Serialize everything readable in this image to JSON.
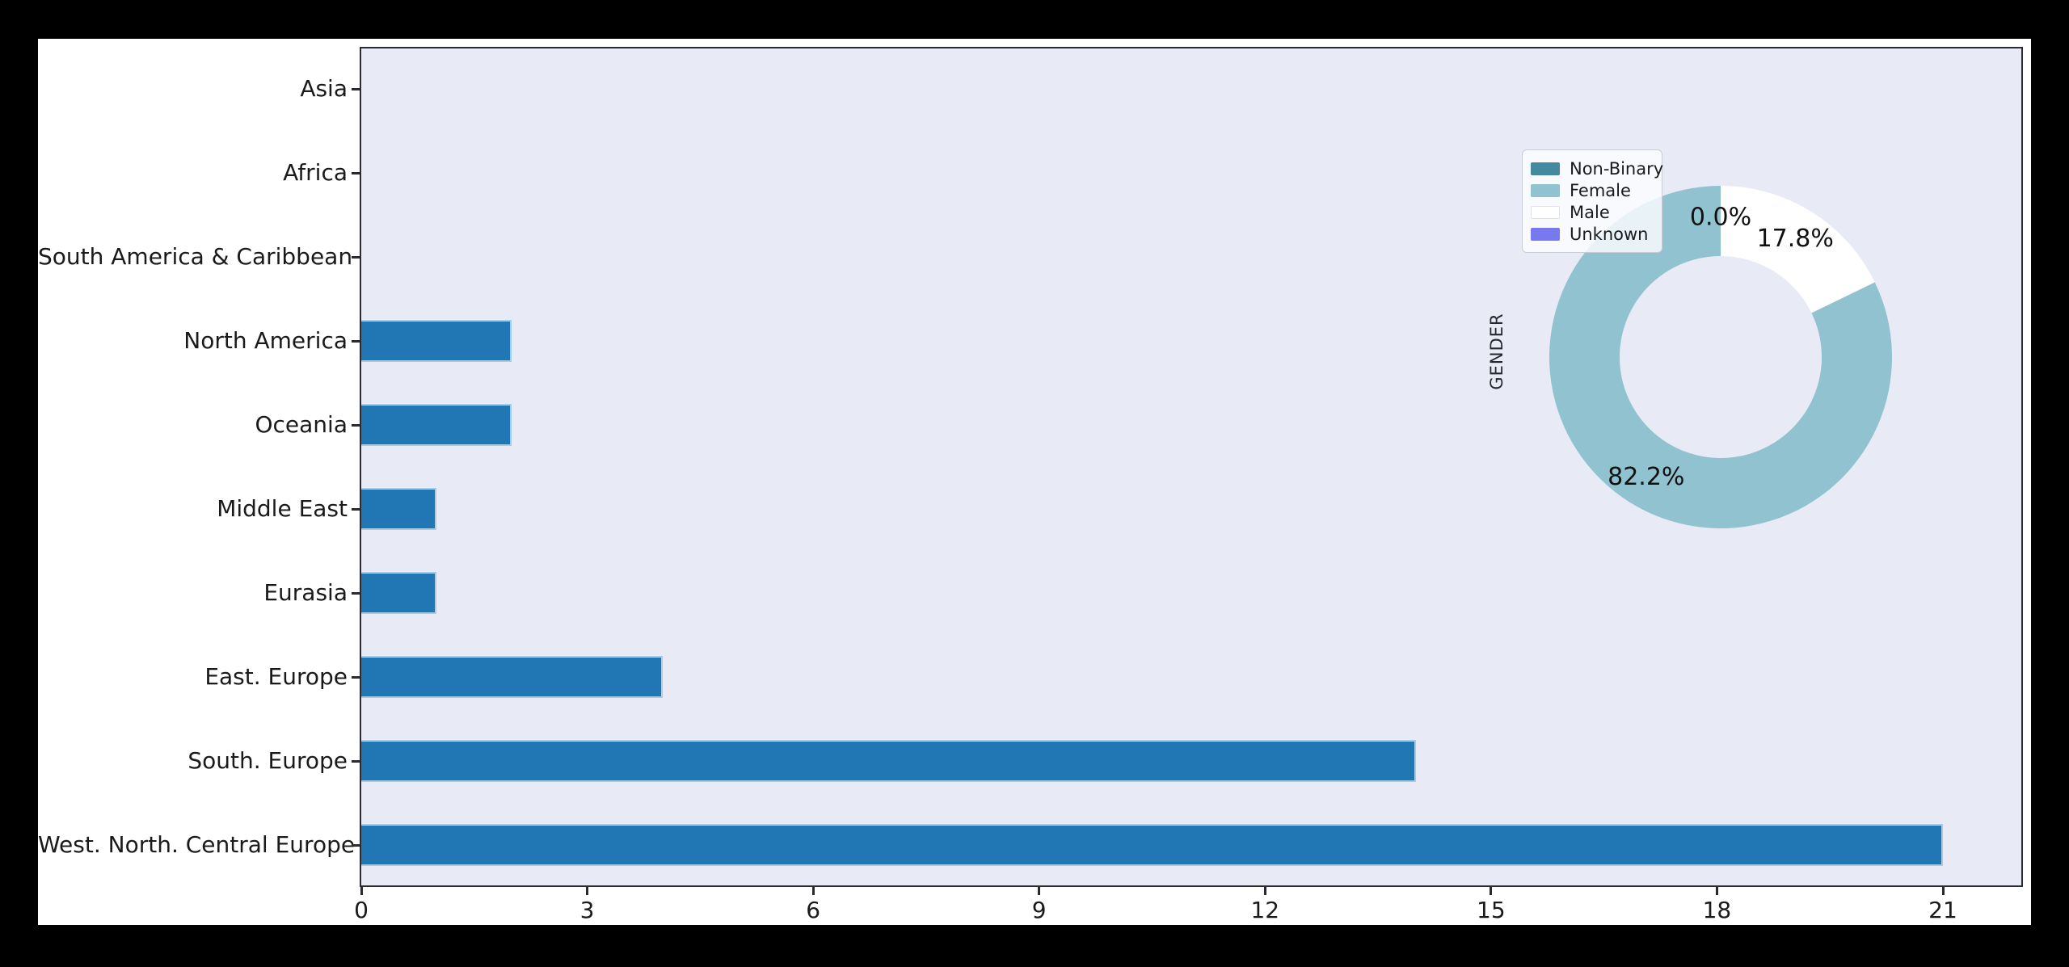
{
  "chart_data": [
    {
      "type": "bar",
      "orientation": "horizontal",
      "title": "",
      "xlabel": "",
      "ylabel": "",
      "categories": [
        "Asia",
        "Africa",
        "South America & Caribbean",
        "North America",
        "Oceania",
        "Middle East",
        "Eurasia",
        "East. Europe",
        "South. Europe",
        "West. North. Central Europe"
      ],
      "values": [
        0,
        0,
        0,
        2,
        2,
        1,
        1,
        4,
        14,
        21
      ],
      "x_ticks": [
        0,
        3,
        6,
        9,
        12,
        15,
        18,
        21
      ],
      "xlim": [
        0,
        22.05
      ],
      "grid": "off",
      "bar_color": "#2177b4",
      "bar_edge_color": "#a5cde4",
      "plot_bg_color": "#e8ebf6",
      "spine_color": "#2a2a32"
    },
    {
      "type": "pie",
      "title": "GENDER",
      "donut": true,
      "hole_ratio": 0.59,
      "start_angle": 90,
      "counterclock": true,
      "legend_position": "upper-left-of-pie",
      "slices": [
        {
          "label": "Non-Binary",
          "pct": 0.0,
          "pct_text": "0.0%",
          "color": "#4389a0"
        },
        {
          "label": "Female",
          "pct": 82.2,
          "pct_text": "82.2%",
          "color": "#91c2d0"
        },
        {
          "label": "Male",
          "pct": 17.8,
          "pct_text": "17.8%",
          "color": "#ffffff"
        },
        {
          "label": "Unknown",
          "pct": 0.0,
          "pct_text": "0.0%",
          "color": "#7879ee"
        }
      ]
    }
  ]
}
